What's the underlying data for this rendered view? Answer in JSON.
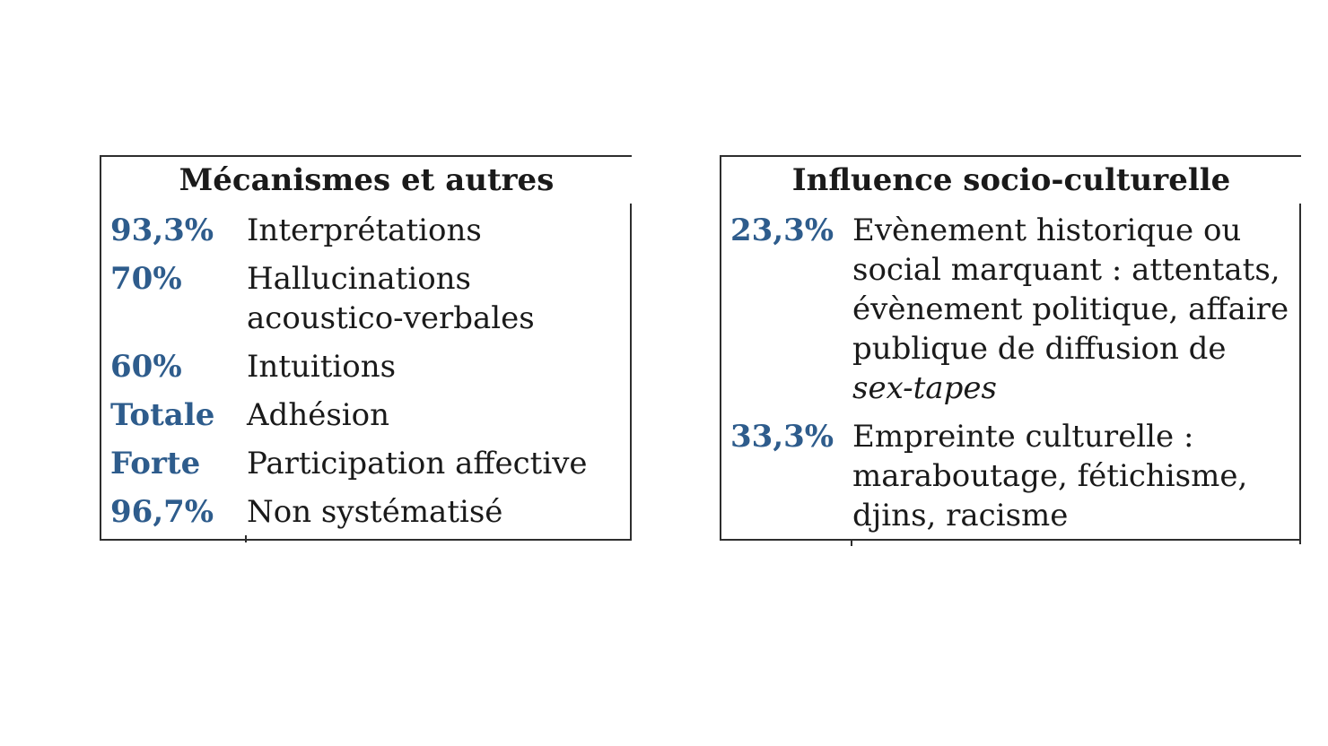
{
  "colors": {
    "accent_blue": "#2E5C8C",
    "text_black": "#1A1A1A",
    "border_gray": "#2E2E2E",
    "background": "#FFFFFF"
  },
  "tables": [
    {
      "title": "Mécanismes et autres",
      "rows": [
        {
          "value": "93,3%",
          "label": "Interprétations"
        },
        {
          "value": "70%",
          "label": "Hallucinations acoustico-verbales"
        },
        {
          "value": "60%",
          "label": "Intuitions"
        },
        {
          "value": "Totale",
          "label": "Adhésion"
        },
        {
          "value": "Forte",
          "label": "Participation affective"
        },
        {
          "value": "96,7%",
          "label": "Non systématisé"
        }
      ]
    },
    {
      "title": "Influence socio-culturelle",
      "rows": [
        {
          "value": "23,3%",
          "label": "Evènement historique ou social marquant : attentats, évènement politique, affaire publique de diffusion de ",
          "label_italic": "sex-tapes"
        },
        {
          "value": "33,3%",
          "label": "Empreinte culturelle : maraboutage, fétichisme, djins, racisme",
          "label_italic": ""
        }
      ]
    }
  ]
}
